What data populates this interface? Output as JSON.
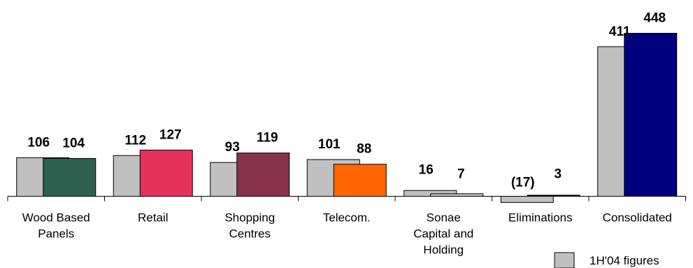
{
  "chart_data": {
    "type": "bar",
    "categories": [
      [
        "Wood Based",
        "Panels"
      ],
      [
        "Retail"
      ],
      [
        "Shopping",
        "Centres"
      ],
      [
        "Telecom."
      ],
      [
        "Sonae",
        "Capital and",
        "Holding"
      ],
      [
        "Eliminations"
      ],
      [
        "Consolidated"
      ]
    ],
    "series": [
      {
        "name": "1H'04 figures",
        "color": "#c0c0c0",
        "values": [
          106,
          112,
          93,
          101,
          16,
          -17,
          411
        ],
        "labels": [
          "106",
          "112",
          "93",
          "101",
          "16",
          "(17)",
          "411"
        ]
      },
      {
        "colors": [
          "#2e6050",
          "#e5325c",
          "#86324a",
          "#ff6600",
          "#c0c0c0",
          "#000080",
          "#00007f"
        ],
        "values": [
          104,
          127,
          119,
          88,
          7,
          3,
          448
        ],
        "labels": [
          "104",
          "127",
          "119",
          "88",
          "7",
          "3",
          "448"
        ]
      }
    ],
    "legend": {
      "position": "bottom-right",
      "entries": [
        "1H'04 figures"
      ]
    }
  }
}
